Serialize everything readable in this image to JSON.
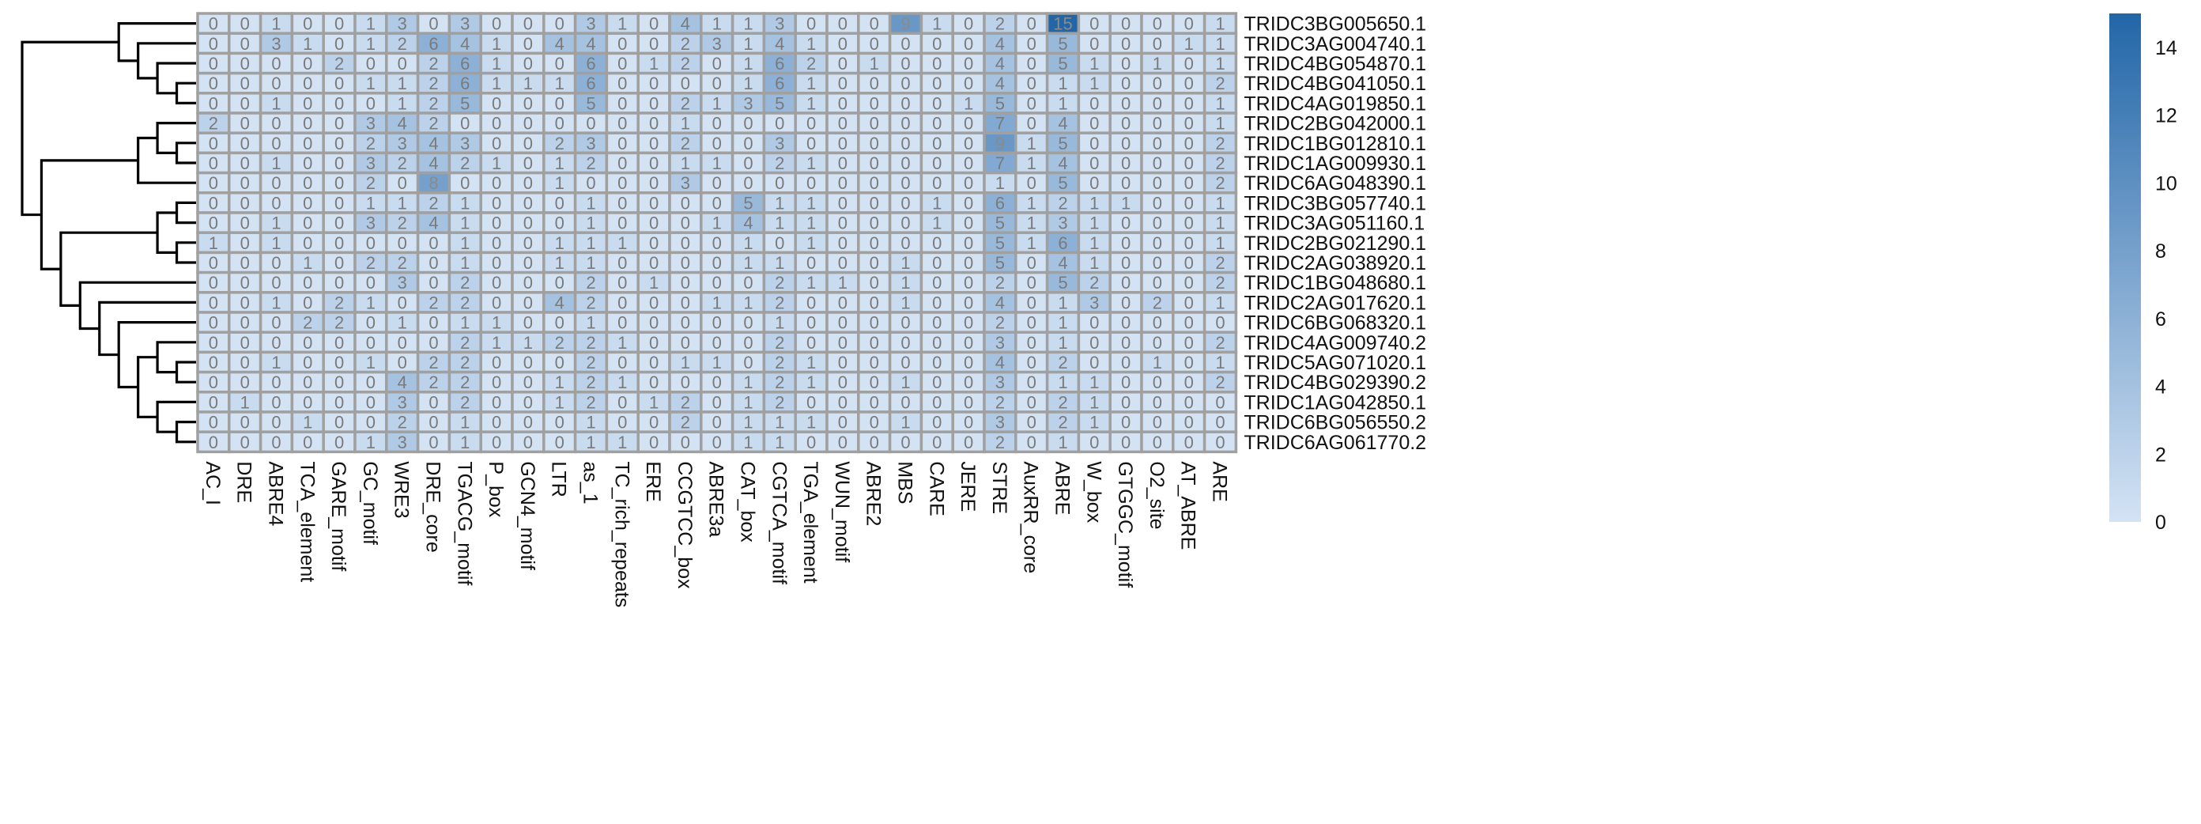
{
  "chart_data": {
    "type": "heatmap",
    "columns": [
      "AC_I",
      "DRE",
      "ABRE4",
      "TCA_element",
      "GARE_motif",
      "GC_motif",
      "WRE3",
      "DRE_core",
      "TGACG_motif",
      "P_box",
      "GCN4_motif",
      "LTR",
      "as_1",
      "TC_rich_repeats",
      "ERE",
      "CCGTCC_box",
      "ABRE3a",
      "CAT_box",
      "CGTCA_motif",
      "TGA_element",
      "WUN_motif",
      "ABRE2",
      "MBS",
      "CARE",
      "JERE",
      "STRE",
      "AuxRR_core",
      "ABRE",
      "W_box",
      "GTGGC_motif",
      "O2_site",
      "AT_ABRE",
      "ARE"
    ],
    "rows": [
      "TRIDC3BG005650.1",
      "TRIDC3AG004740.1",
      "TRIDC4BG054870.1",
      "TRIDC4BG041050.1",
      "TRIDC4AG019850.1",
      "TRIDC2BG042000.1",
      "TRIDC1BG012810.1",
      "TRIDC1AG009930.1",
      "TRIDC6AG048390.1",
      "TRIDC3BG057740.1",
      "TRIDC3AG051160.1",
      "TRIDC2BG021290.1",
      "TRIDC2AG038920.1",
      "TRIDC1BG048680.1",
      "TRIDC2AG017620.1",
      "TRIDC6BG068320.1",
      "TRIDC4AG009740.2",
      "TRIDC5AG071020.1",
      "TRIDC4BG029390.2",
      "TRIDC1AG042850.1",
      "TRIDC6BG056550.2",
      "TRIDC6AG061770.2"
    ],
    "values": [
      [
        0,
        0,
        1,
        0,
        0,
        1,
        3,
        0,
        3,
        0,
        0,
        0,
        3,
        1,
        0,
        4,
        1,
        1,
        3,
        0,
        0,
        0,
        9,
        1,
        0,
        2,
        0,
        15,
        0,
        0,
        0,
        0,
        1
      ],
      [
        0,
        0,
        3,
        1,
        0,
        1,
        2,
        6,
        4,
        1,
        0,
        4,
        4,
        0,
        0,
        2,
        3,
        1,
        4,
        1,
        0,
        0,
        0,
        0,
        0,
        4,
        0,
        5,
        0,
        0,
        0,
        1,
        1
      ],
      [
        0,
        0,
        0,
        0,
        2,
        0,
        0,
        2,
        6,
        1,
        0,
        0,
        6,
        0,
        1,
        2,
        0,
        1,
        6,
        2,
        0,
        1,
        0,
        0,
        0,
        4,
        0,
        5,
        1,
        0,
        1,
        0,
        1
      ],
      [
        0,
        0,
        0,
        0,
        0,
        1,
        1,
        2,
        6,
        1,
        1,
        1,
        6,
        0,
        0,
        0,
        0,
        1,
        6,
        1,
        0,
        0,
        0,
        0,
        0,
        4,
        0,
        1,
        1,
        0,
        0,
        0,
        2
      ],
      [
        0,
        0,
        1,
        0,
        0,
        0,
        1,
        2,
        5,
        0,
        0,
        0,
        5,
        0,
        0,
        2,
        1,
        3,
        5,
        1,
        0,
        0,
        0,
        0,
        1,
        5,
        0,
        1,
        0,
        0,
        0,
        0,
        1
      ],
      [
        2,
        0,
        0,
        0,
        0,
        3,
        4,
        2,
        0,
        0,
        0,
        0,
        0,
        0,
        0,
        1,
        0,
        0,
        0,
        0,
        0,
        0,
        0,
        0,
        0,
        7,
        0,
        4,
        0,
        0,
        0,
        0,
        1
      ],
      [
        0,
        0,
        0,
        0,
        0,
        2,
        3,
        4,
        3,
        0,
        0,
        2,
        3,
        0,
        0,
        2,
        0,
        0,
        3,
        0,
        0,
        0,
        0,
        0,
        0,
        9,
        1,
        5,
        0,
        0,
        0,
        0,
        2
      ],
      [
        0,
        0,
        1,
        0,
        0,
        3,
        2,
        4,
        2,
        1,
        0,
        1,
        2,
        0,
        0,
        1,
        1,
        0,
        2,
        1,
        0,
        0,
        0,
        0,
        0,
        7,
        1,
        4,
        0,
        0,
        0,
        0,
        2
      ],
      [
        0,
        0,
        0,
        0,
        0,
        2,
        0,
        8,
        0,
        0,
        0,
        1,
        0,
        0,
        0,
        3,
        0,
        0,
        0,
        0,
        0,
        0,
        0,
        0,
        0,
        1,
        0,
        5,
        0,
        0,
        0,
        0,
        2
      ],
      [
        0,
        0,
        0,
        0,
        0,
        1,
        1,
        2,
        1,
        0,
        0,
        0,
        1,
        0,
        0,
        0,
        0,
        5,
        1,
        1,
        0,
        0,
        0,
        1,
        0,
        6,
        1,
        2,
        1,
        1,
        0,
        0,
        1
      ],
      [
        0,
        0,
        1,
        0,
        0,
        3,
        2,
        4,
        1,
        0,
        0,
        0,
        1,
        0,
        0,
        0,
        1,
        4,
        1,
        1,
        0,
        0,
        0,
        1,
        0,
        5,
        1,
        3,
        1,
        0,
        0,
        0,
        1
      ],
      [
        1,
        0,
        1,
        0,
        0,
        0,
        0,
        0,
        1,
        0,
        0,
        1,
        1,
        1,
        0,
        0,
        0,
        1,
        0,
        1,
        0,
        0,
        0,
        0,
        0,
        5,
        1,
        6,
        1,
        0,
        0,
        0,
        1
      ],
      [
        0,
        0,
        0,
        1,
        0,
        2,
        2,
        0,
        1,
        0,
        0,
        1,
        1,
        0,
        0,
        0,
        0,
        1,
        1,
        0,
        0,
        0,
        1,
        0,
        0,
        5,
        0,
        4,
        1,
        0,
        0,
        0,
        2
      ],
      [
        0,
        0,
        0,
        0,
        0,
        0,
        3,
        0,
        2,
        0,
        0,
        0,
        2,
        0,
        1,
        0,
        0,
        0,
        2,
        1,
        1,
        0,
        1,
        0,
        0,
        2,
        0,
        5,
        2,
        0,
        0,
        0,
        2
      ],
      [
        0,
        0,
        1,
        0,
        2,
        1,
        0,
        2,
        2,
        0,
        0,
        4,
        2,
        0,
        0,
        0,
        1,
        1,
        2,
        0,
        0,
        0,
        1,
        0,
        0,
        4,
        0,
        1,
        3,
        0,
        2,
        0,
        1
      ],
      [
        0,
        0,
        0,
        2,
        2,
        0,
        1,
        0,
        1,
        1,
        0,
        0,
        1,
        0,
        0,
        0,
        0,
        0,
        1,
        0,
        0,
        0,
        0,
        0,
        0,
        2,
        0,
        1,
        0,
        0,
        0,
        0,
        0
      ],
      [
        0,
        0,
        0,
        0,
        0,
        0,
        0,
        0,
        2,
        1,
        1,
        2,
        2,
        1,
        0,
        0,
        0,
        0,
        2,
        0,
        0,
        0,
        0,
        0,
        0,
        3,
        0,
        1,
        0,
        0,
        0,
        0,
        2
      ],
      [
        0,
        0,
        1,
        0,
        0,
        1,
        0,
        2,
        2,
        0,
        0,
        0,
        2,
        0,
        0,
        1,
        1,
        0,
        2,
        1,
        0,
        0,
        0,
        0,
        0,
        4,
        0,
        2,
        0,
        0,
        1,
        0,
        1
      ],
      [
        0,
        0,
        0,
        0,
        0,
        0,
        4,
        2,
        2,
        0,
        0,
        1,
        2,
        1,
        0,
        0,
        0,
        1,
        2,
        1,
        0,
        0,
        1,
        0,
        0,
        3,
        0,
        1,
        1,
        0,
        0,
        0,
        2
      ],
      [
        0,
        1,
        0,
        0,
        0,
        0,
        3,
        0,
        2,
        0,
        0,
        1,
        2,
        0,
        1,
        2,
        0,
        1,
        2,
        0,
        0,
        0,
        0,
        0,
        0,
        2,
        0,
        2,
        1,
        0,
        0,
        0,
        0
      ],
      [
        0,
        0,
        0,
        1,
        0,
        0,
        2,
        0,
        1,
        0,
        0,
        0,
        1,
        0,
        0,
        2,
        0,
        1,
        1,
        1,
        0,
        0,
        1,
        0,
        0,
        3,
        0,
        2,
        1,
        0,
        0,
        0,
        0
      ],
      [
        0,
        0,
        0,
        0,
        0,
        1,
        3,
        0,
        1,
        0,
        0,
        0,
        1,
        1,
        0,
        0,
        0,
        1,
        1,
        0,
        0,
        0,
        0,
        0,
        0,
        2,
        0,
        1,
        0,
        0,
        0,
        0,
        0
      ]
    ],
    "color_range": [
      0,
      15
    ],
    "color_low": "#d4e3f4",
    "color_high": "#2266a8",
    "legend_ticks": [
      0,
      2,
      4,
      6,
      8,
      10,
      12,
      14
    ],
    "legend_placement": "right",
    "dendrogram_side": "left",
    "cell_border_color": "#a0a0a0"
  }
}
